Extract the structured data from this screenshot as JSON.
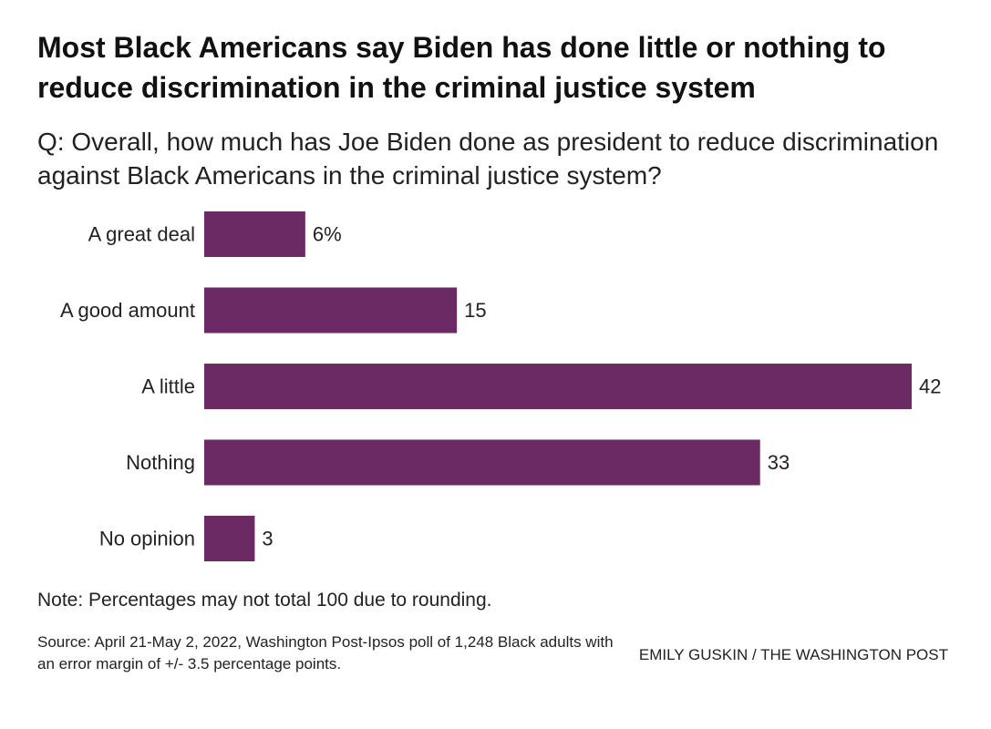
{
  "chart_data": {
    "type": "bar",
    "orientation": "horizontal",
    "title": "Most Black Americans say Biden has done little or nothing to reduce discrimination in the criminal justice system",
    "subtitle": "Q: Overall, how much has Joe Biden done as president to reduce discrimination against Black Americans in the criminal justice system?",
    "categories": [
      "A great deal",
      "A good amount",
      "A little",
      "Nothing",
      "No opinion"
    ],
    "values": [
      6,
      15,
      42,
      33,
      3
    ],
    "value_labels": [
      "6%",
      "15",
      "42",
      "33",
      "3"
    ],
    "xlim": [
      0,
      42
    ],
    "grid": false,
    "bar_color": "#6b2a63",
    "note": "Note: Percentages may not total 100 due to rounding.",
    "source": "Source: April 21-May 2, 2022, Washington Post-Ipsos poll of 1,248 Black adults with an error margin of +/- 3.5 percentage points.",
    "credit": "EMILY GUSKIN / THE WASHINGTON POST"
  }
}
